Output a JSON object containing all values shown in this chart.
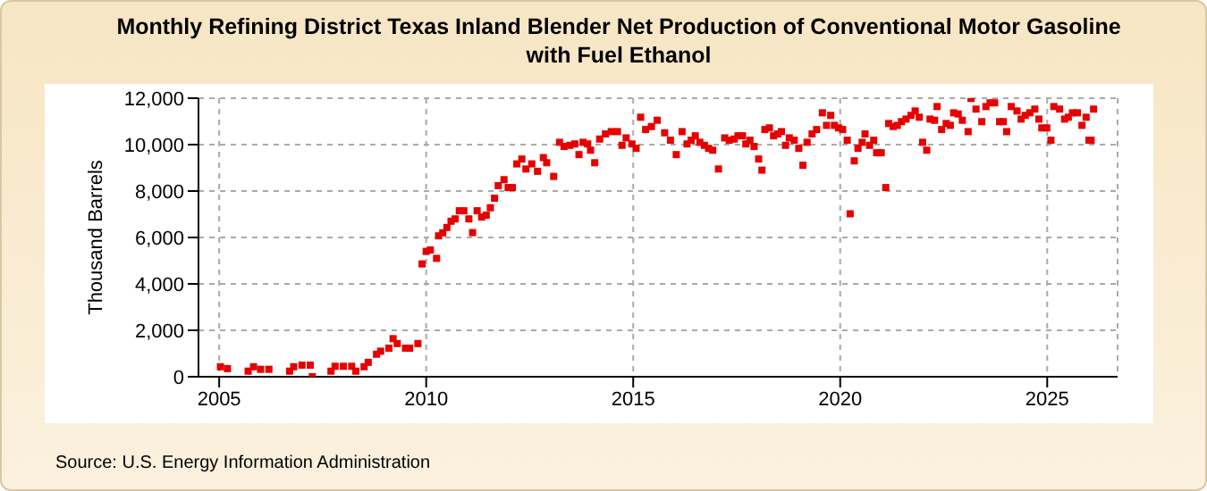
{
  "chart_data": {
    "type": "scatter",
    "title": "Monthly Refining District Texas Inland Blender Net Production of Conventional Motor Gasoline with Fuel Ethanol",
    "ylabel": "Thousand Barrels",
    "annotations": [
      "Source: U.S. Energy Information Administration"
    ],
    "x": [
      2005.03,
      2005.2,
      2005.7,
      2005.83,
      2006.0,
      2006.2,
      2006.7,
      2006.8,
      2007.0,
      2007.2,
      2007.25,
      2007.7,
      2007.8,
      2008.0,
      2008.2,
      2008.3,
      2008.5,
      2008.6,
      2008.8,
      2008.9,
      2009.1,
      2009.2,
      2009.3,
      2009.5,
      2009.6,
      2009.8,
      2009.9,
      2010.0,
      2010.1,
      2010.25,
      2010.3,
      2010.4,
      2010.5,
      2010.6,
      2010.7,
      2010.8,
      2010.91,
      2011.03,
      2011.12,
      2011.23,
      2011.34,
      2011.45,
      2011.55,
      2011.65,
      2011.74,
      2011.88,
      2011.98,
      2012.08,
      2012.19,
      2012.31,
      2012.41,
      2012.55,
      2012.69,
      2012.83,
      2012.91,
      2013.08,
      2013.22,
      2013.33,
      2013.47,
      2013.59,
      2013.69,
      2013.79,
      2013.9,
      2013.97,
      2014.07,
      2014.19,
      2014.33,
      2014.47,
      2014.62,
      2014.73,
      2014.83,
      2014.97,
      2015.07,
      2015.18,
      2015.3,
      2015.44,
      2015.58,
      2015.76,
      2015.9,
      2016.04,
      2016.18,
      2016.3,
      2016.4,
      2016.5,
      2016.61,
      2016.72,
      2016.82,
      2016.92,
      2017.06,
      2017.21,
      2017.32,
      2017.44,
      2017.53,
      2017.64,
      2017.72,
      2017.82,
      2017.92,
      2018.03,
      2018.11,
      2018.18,
      2018.29,
      2018.39,
      2018.49,
      2018.58,
      2018.68,
      2018.77,
      2018.89,
      2019.0,
      2019.1,
      2019.2,
      2019.32,
      2019.43,
      2019.57,
      2019.67,
      2019.77,
      2019.86,
      2019.96,
      2020.06,
      2020.17,
      2020.24,
      2020.34,
      2020.43,
      2020.53,
      2020.6,
      2020.71,
      2020.81,
      2020.88,
      2020.99,
      2021.1,
      2021.17,
      2021.28,
      2021.38,
      2021.48,
      2021.59,
      2021.71,
      2021.81,
      2021.91,
      2021.99,
      2022.09,
      2022.17,
      2022.28,
      2022.34,
      2022.45,
      2022.56,
      2022.66,
      2022.74,
      2022.85,
      2022.95,
      2023.09,
      2023.16,
      2023.28,
      2023.42,
      2023.52,
      2023.62,
      2023.73,
      2023.85,
      2023.94,
      2024.02,
      2024.13,
      2024.27,
      2024.37,
      2024.47,
      2024.58,
      2024.7,
      2024.8,
      2024.87,
      2024.99,
      2025.09,
      2025.16,
      2025.3,
      2025.42,
      2025.51,
      2025.61,
      2025.73,
      2025.84,
      2025.94,
      2026.01,
      2026.06,
      2026.12
    ],
    "values": [
      430,
      350,
      240,
      430,
      320,
      320,
      240,
      430,
      500,
      500,
      0,
      240,
      450,
      450,
      450,
      240,
      430,
      620,
      970,
      1100,
      1230,
      1640,
      1430,
      1230,
      1230,
      1430,
      4860,
      5400,
      5460,
      5100,
      6070,
      6200,
      6430,
      6700,
      6800,
      7150,
      7150,
      6800,
      6210,
      7150,
      6880,
      6960,
      7280,
      7690,
      8230,
      8490,
      8150,
      8150,
      9170,
      9380,
      8950,
      9170,
      8850,
      9440,
      9220,
      8630,
      10100,
      9920,
      9970,
      10030,
      9570,
      10100,
      10030,
      9760,
      9220,
      10240,
      10460,
      10560,
      10560,
      9970,
      10290,
      10030,
      9840,
      11180,
      10650,
      10780,
      11050,
      10510,
      10190,
      9570,
      10560,
      10030,
      10190,
      10380,
      10100,
      9970,
      9840,
      9760,
      8950,
      10290,
      10190,
      10240,
      10380,
      10380,
      10030,
      10190,
      9920,
      9380,
      8900,
      10650,
      10720,
      10380,
      10460,
      10560,
      9970,
      10290,
      10190,
      9840,
      9110,
      10100,
      10460,
      10650,
      11370,
      10830,
      11260,
      10830,
      10720,
      10650,
      10190,
      7020,
      9300,
      9840,
      10100,
      10460,
      9970,
      10190,
      9650,
      9650,
      8150,
      10910,
      10780,
      10830,
      10990,
      11100,
      11260,
      11450,
      11180,
      10100,
      9760,
      11100,
      11050,
      11640,
      10650,
      10910,
      10830,
      11370,
      11320,
      11050,
      10560,
      11990,
      11530,
      10990,
      11640,
      11800,
      11800,
      10990,
      10990,
      10560,
      11640,
      11450,
      11100,
      11260,
      11370,
      11530,
      11100,
      10720,
      10720,
      10190,
      11640,
      11530,
      11100,
      11180,
      11370,
      11370,
      10830,
      11180,
      10190,
      10190,
      11530
    ],
    "color": "#e60000",
    "marker": "square",
    "grid": true,
    "xlim": [
      2004.5,
      2026.7
    ],
    "xticks": [
      2005,
      2010,
      2015,
      2020,
      2025
    ],
    "ylim": [
      0,
      12000
    ],
    "yticks": [
      0,
      {
        "value": 2000,
        "label": "2,000"
      },
      {
        "value": 4000,
        "label": "4,000"
      },
      {
        "value": 6000,
        "label": "6,000"
      },
      {
        "value": 8000,
        "label": "8,000"
      },
      {
        "value": 10000,
        "label": "10,000"
      },
      {
        "value": 12000,
        "label": "12,000"
      }
    ]
  }
}
